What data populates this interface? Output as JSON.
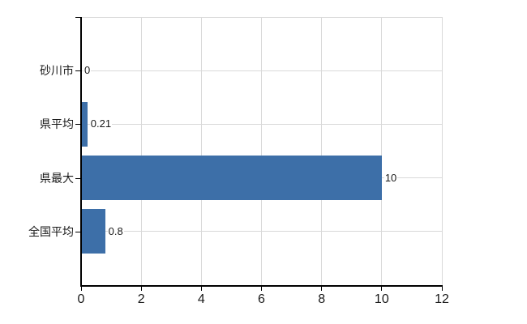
{
  "chart_data": {
    "type": "bar",
    "orientation": "horizontal",
    "title": "",
    "xlabel": "",
    "ylabel": "",
    "categories": [
      "砂川市",
      "県平均",
      "県最大",
      "全国平均"
    ],
    "values": [
      0,
      0.21,
      10,
      0.8
    ],
    "value_labels": [
      "0",
      "0.21",
      "10",
      "0.8"
    ],
    "xlim": [
      0,
      12
    ],
    "xticks": [
      0,
      2,
      4,
      6,
      8,
      10,
      12
    ],
    "grid": true,
    "legend": false,
    "bar_color": "#3d6fa8",
    "grid_color": "#d9d9d9",
    "axis_color": "#000000",
    "text_color": "#1a1a1a"
  }
}
